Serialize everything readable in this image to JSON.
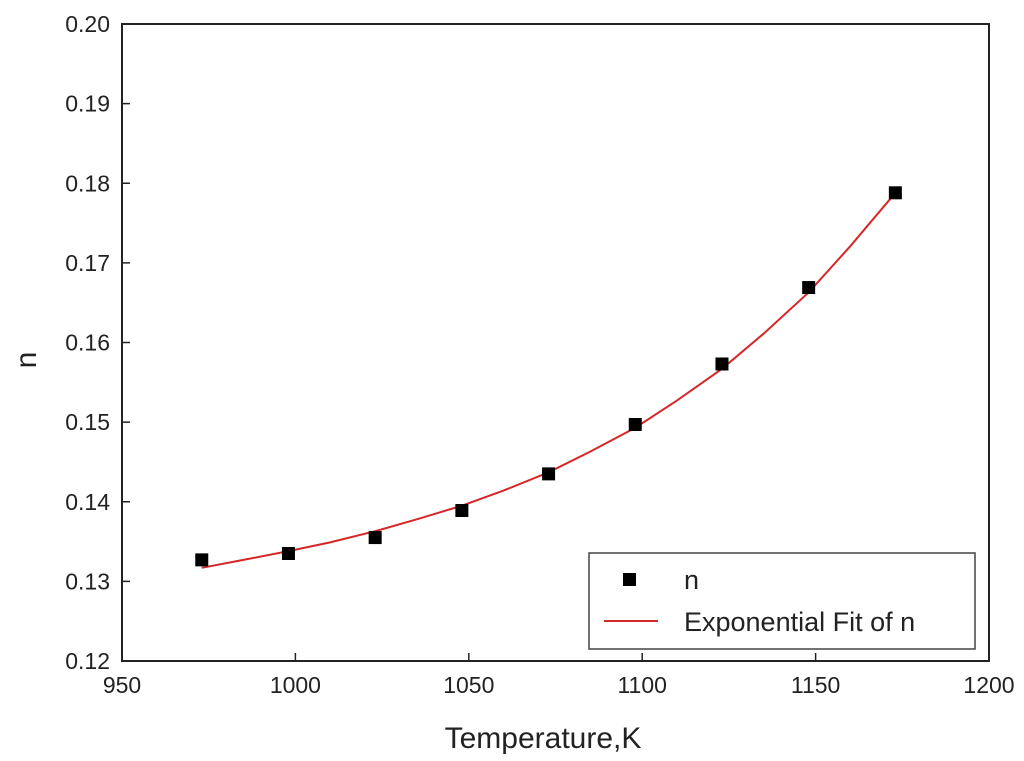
{
  "chart_data": {
    "type": "scatter",
    "title": "",
    "xlabel": "Temperature,K",
    "ylabel": "n",
    "xlim": [
      950,
      1200
    ],
    "ylim": [
      0.12,
      0.2
    ],
    "x_ticks": [
      "950",
      "1000",
      "1050",
      "1100",
      "1150",
      "1200"
    ],
    "y_ticks": [
      "0.12",
      "0.13",
      "0.14",
      "0.15",
      "0.16",
      "0.17",
      "0.18",
      "0.19",
      "0.20"
    ],
    "grid": false,
    "legend_position": "bottom-right",
    "series": [
      {
        "name": "n",
        "kind": "scatter",
        "marker": "square",
        "color": "#000000",
        "x": [
          973,
          998,
          1023,
          1048,
          1073,
          1098,
          1123,
          1148,
          1173
        ],
        "y": [
          0.1327,
          0.1335,
          0.1355,
          0.1389,
          0.1435,
          0.1497,
          0.1573,
          0.1669,
          0.1788
        ]
      },
      {
        "name": "Exponential Fit of n",
        "kind": "line",
        "color": "#d62728",
        "x": [
          973,
          985,
          998,
          1010,
          1023,
          1035,
          1048,
          1060,
          1073,
          1085,
          1098,
          1110,
          1123,
          1135,
          1148,
          1160,
          1173
        ],
        "y": [
          0.1317,
          0.1327,
          0.1338,
          0.1349,
          0.1363,
          0.1378,
          0.1395,
          0.1414,
          0.1437,
          0.1463,
          0.1493,
          0.1527,
          0.1567,
          0.1611,
          0.1663,
          0.1721,
          0.1788
        ]
      }
    ]
  }
}
